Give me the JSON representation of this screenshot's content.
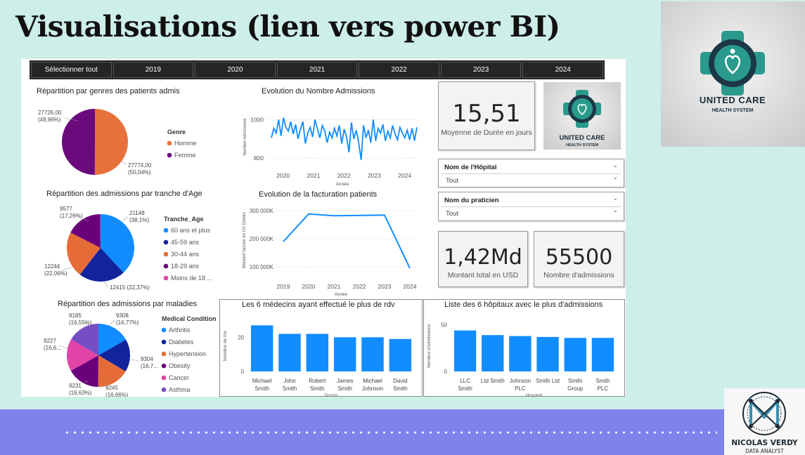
{
  "slide": {
    "title": "Visualisations (lien vers power BI)",
    "brand_line1": "UNITED CARE",
    "brand_line2": "HEALTH SYSTEM",
    "analyst_name": "NICOLAS VERDY",
    "analyst_role": "DATA ANALYST",
    "colors": {
      "background": "#cdeee9",
      "band": "#7f82e8"
    }
  },
  "slicer": {
    "items": [
      "Sélectionner tout",
      "2019",
      "2020",
      "2021",
      "2022",
      "2023",
      "2024"
    ]
  },
  "kpis": {
    "avg_stay": {
      "value": "15,51",
      "label": "Moyenne de Durée en jours"
    },
    "total_amount": {
      "value": "1,42Md",
      "label": "Montant total en USD"
    },
    "admissions": {
      "value": "55500",
      "label": "Nombre d'admissions"
    }
  },
  "filters": {
    "hospital": {
      "title": "Nom de l'Hôpital",
      "value": "Tout"
    },
    "practitioner": {
      "title": "Nom du praticien",
      "value": "Tout"
    }
  },
  "chart_data": [
    {
      "type": "pie",
      "title": "Répartition par genres des patients admis",
      "legend_title": "Genre",
      "slices": [
        {
          "name": "Homme",
          "value": 27774,
          "label": "27774,00",
          "pct": "(50,04%)",
          "color": "#e8703a"
        },
        {
          "name": "Femme",
          "value": 27726,
          "label": "27726,00",
          "pct": "(49,96%)",
          "color": "#6b0a7d"
        }
      ]
    },
    {
      "type": "line",
      "title": "Evolution du Nombre Admissions",
      "xlabel": "Année",
      "ylabel": "Nombre Admissions",
      "yticks": [
        "1000",
        "800"
      ],
      "ylim": [
        760,
        1060
      ],
      "xticks": [
        "2020",
        "2021",
        "2022",
        "2023",
        "2024"
      ],
      "x_range": [
        2019.5,
        2024.4
      ],
      "values": [
        905,
        955,
        930,
        1000,
        915,
        1010,
        960,
        940,
        990,
        925,
        975,
        900,
        950,
        990,
        875,
        930,
        960,
        910,
        1000,
        950,
        905,
        970,
        940,
        880,
        935,
        905,
        955,
        915,
        970,
        875,
        950,
        910,
        830,
        985,
        900,
        945,
        880,
        790,
        970,
        905,
        945,
        880,
        1000,
        890,
        955,
        930,
        975,
        890,
        940,
        905,
        970,
        925,
        895,
        960,
        930,
        905,
        945,
        895,
        955,
        890,
        960
      ]
    },
    {
      "type": "pie",
      "title": "Répartition des admissions par tranche d'Age",
      "legend_title": "Tranche_Age",
      "slices": [
        {
          "name": "60 ans et plus",
          "value": 21148,
          "label": "21148",
          "pct": "(38,1%)",
          "color": "#118dff"
        },
        {
          "name": "45-59 ans",
          "value": 12415,
          "label": "12415 (22,37%)",
          "pct": "",
          "color": "#12239e"
        },
        {
          "name": "30-44 ans",
          "value": 12244,
          "label": "12244",
          "pct": "(22,06%)",
          "color": "#e66c37"
        },
        {
          "name": "18-29 ans",
          "value": 9577,
          "label": "9577",
          "pct": "(17,26%)",
          "color": "#6b007b"
        },
        {
          "name": "Moins de 18 ...",
          "value": 116,
          "label": "",
          "pct": "",
          "color": "#e044a7"
        }
      ]
    },
    {
      "type": "line",
      "title": "Evolution de la facturation patients",
      "xlabel": "Année",
      "ylabel": "Montant facturé en US Dollars",
      "x": [
        2019,
        2020,
        2021,
        2022,
        2023,
        2024
      ],
      "values": [
        190000,
        288000,
        282000,
        283000,
        284000,
        95000
      ],
      "yticks": [
        100000,
        200000,
        300000
      ],
      "ytick_labels": [
        "100 000K",
        "200 000K",
        "300 000K"
      ],
      "ylim": [
        80000,
        310000
      ]
    },
    {
      "type": "pie",
      "title": "Répartition des admissions par maladies",
      "legend_title": "Medical Condition",
      "slices": [
        {
          "name": "Arthritis",
          "value": 9308,
          "label": "9308",
          "pct": "(16,77%)",
          "color": "#118dff"
        },
        {
          "name": "Diabetes",
          "value": 9304,
          "label": "9304",
          "pct": "(16,7...",
          "color": "#12239e"
        },
        {
          "name": "Hypertension",
          "value": 9245,
          "label": "9245",
          "pct": "(16,66%)",
          "color": "#e66c37"
        },
        {
          "name": "Obesity",
          "value": 9231,
          "label": "9231",
          "pct": "(16,63%)",
          "color": "#6b007b"
        },
        {
          "name": "Cancer",
          "value": 9227,
          "label": "9227",
          "pct": "(16,6...",
          "color": "#e044a7"
        },
        {
          "name": "Asthma",
          "value": 9185,
          "label": "9185",
          "pct": "(16,55%)",
          "color": "#744ec2"
        }
      ]
    },
    {
      "type": "bar",
      "title": "Les 6 médecins ayant effectué le plus de rdv",
      "xlabel": "Doctor",
      "ylabel": "Nombre de rdv",
      "categories": [
        [
          "Michael",
          "Smith"
        ],
        [
          "John",
          "Smith"
        ],
        [
          "Robert",
          "Smith"
        ],
        [
          "James",
          "Smith"
        ],
        [
          "Michael",
          "Johnson"
        ],
        [
          "David",
          "Smith"
        ]
      ],
      "values": [
        27,
        22,
        22,
        20,
        20,
        19
      ],
      "yticks": [
        "0",
        "20"
      ],
      "ylim": [
        0,
        30
      ]
    },
    {
      "type": "bar",
      "title": "Liste des 6 hôpitaux avec le plus d'admissions",
      "xlabel": "Hospital",
      "ylabel": "Nombre d'admissions",
      "categories": [
        [
          "LLC",
          "Smith"
        ],
        [
          "Ltd Smith"
        ],
        [
          "Johnson",
          "PLC"
        ],
        [
          "Smith Ltd"
        ],
        [
          "Smith",
          "Group"
        ],
        [
          "Smith",
          "PLC"
        ]
      ],
      "values": [
        44,
        39,
        38,
        37,
        36,
        36
      ],
      "yticks": [
        "0",
        "50"
      ],
      "ylim": [
        0,
        55
      ]
    }
  ]
}
